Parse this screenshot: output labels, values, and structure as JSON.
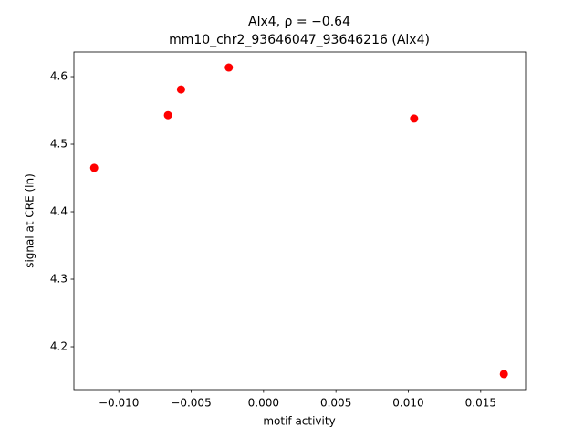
{
  "chart_data": {
    "type": "scatter",
    "title": "Alx4, ρ = −0.64",
    "subtitle": "mm10_chr2_93646047_93646216 (Alx4)",
    "x_label": "motif activity",
    "y_label": "signal at CRE (ln)",
    "series": [
      {
        "color": "#ff0000",
        "x": [
          -0.0117,
          -0.0066,
          -0.0057,
          -0.0024,
          0.0104,
          0.0166
        ],
        "values": [
          4.465,
          4.543,
          4.581,
          4.6135,
          4.538,
          4.1595
        ]
      }
    ],
    "xlim": [
      -0.0131,
      0.0181
    ],
    "ylim": [
      4.1365,
      4.6365
    ],
    "xticks": [
      {
        "value": -0.01,
        "label": "−0.010"
      },
      {
        "value": -0.005,
        "label": "−0.005"
      },
      {
        "value": 0,
        "label": "0.000"
      },
      0.005,
      {
        "value": 0.01,
        "label": "0.010"
      },
      0.015
    ],
    "yticks": [
      4.2,
      4.3,
      4.4,
      4.5,
      4.6
    ],
    "grid": false
  }
}
